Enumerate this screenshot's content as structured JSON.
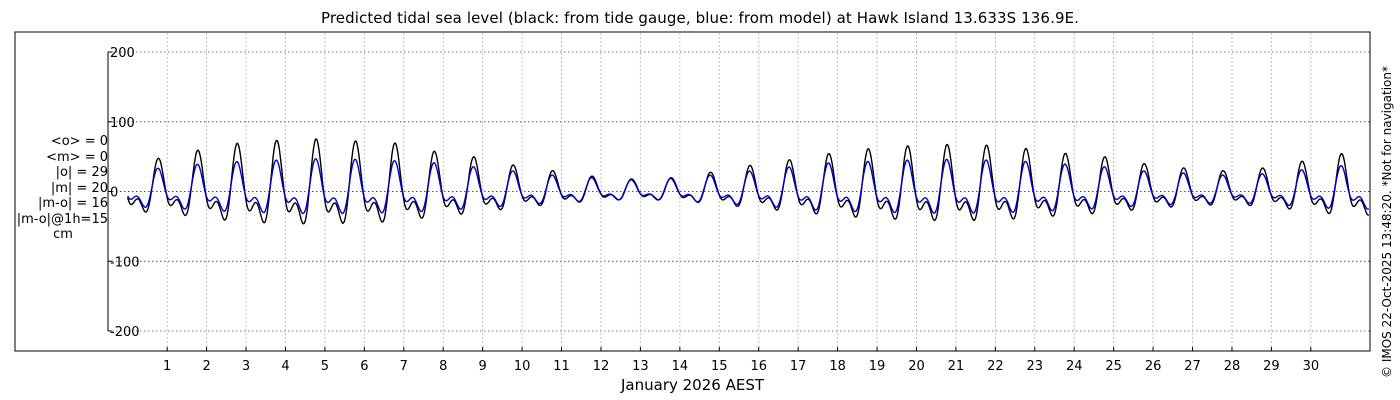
{
  "chart_data": {
    "type": "line",
    "title": "Predicted tidal sea level (black: from tide gauge, blue: from model) at Hawk Island 13.633S 136.9E.",
    "xlabel": "January 2026 AEST",
    "ylabel": "",
    "xlim": [
      -0.5,
      31.5
    ],
    "ylim": [
      -200,
      200
    ],
    "yticks": [
      -200,
      -100,
      0,
      100,
      200
    ],
    "xticks": [
      "1",
      "2",
      "3",
      "4",
      "5",
      "6",
      "7",
      "8",
      "9",
      "10",
      "11",
      "12",
      "13",
      "14",
      "15",
      "16",
      "17",
      "18",
      "19",
      "20",
      "21",
      "22",
      "23",
      "24",
      "25",
      "26",
      "27",
      "28",
      "29",
      "30"
    ],
    "grid": "dotted",
    "x_unit": "day of month (Jan 2026)",
    "y_unit": "cm",
    "series": [
      {
        "name": "tide gauge",
        "color": "#000000",
        "high_tide_peaks": {
          "days": [
            0.8,
            1.8,
            2.8,
            3.8,
            4.8,
            5.8,
            6.8,
            7.8,
            8.8,
            9.8,
            10.8,
            11.8,
            12.8,
            13.8,
            14.8,
            15.8,
            16.8,
            17.8,
            18.8,
            19.8,
            20.8,
            21.8,
            22.8,
            23.8,
            24.8,
            25.8,
            26.8,
            27.8,
            28.8,
            29.8,
            30.8
          ],
          "values": [
            48,
            60,
            70,
            74,
            76,
            73,
            70,
            58,
            50,
            38,
            30,
            22,
            18,
            20,
            28,
            38,
            46,
            55,
            62,
            66,
            68,
            67,
            62,
            55,
            50,
            40,
            34,
            30,
            34,
            44,
            55
          ]
        }
      },
      {
        "name": "model",
        "color": "#0000cc",
        "high_tide_peaks": {
          "days": [
            0.8,
            1.8,
            2.8,
            3.8,
            4.8,
            5.8,
            6.8,
            7.8,
            8.8,
            9.8,
            10.8,
            11.8,
            12.8,
            13.8,
            14.8,
            15.8,
            16.8,
            17.8,
            18.8,
            19.8,
            20.8,
            21.8,
            22.8,
            23.8,
            24.8,
            25.8,
            26.8,
            27.8,
            28.8,
            29.8,
            30.8
          ],
          "values": [
            34,
            40,
            44,
            46,
            48,
            47,
            45,
            42,
            36,
            30,
            24,
            20,
            17,
            19,
            24,
            30,
            36,
            42,
            44,
            46,
            47,
            46,
            44,
            40,
            36,
            30,
            27,
            24,
            26,
            32,
            38
          ]
        }
      }
    ]
  },
  "stats": {
    "mean_obs": "<o> = 0",
    "mean_model": "<m> = 0",
    "abs_obs": "|o| = 29",
    "abs_model": "|m| = 20",
    "abs_diff": "|m-o| = 16",
    "abs_diff_1h": "|m-o|@1h=15",
    "unit": "cm"
  },
  "credit": "© IMOS 22-Oct-2025 13:48:20. *Not for navigation*"
}
